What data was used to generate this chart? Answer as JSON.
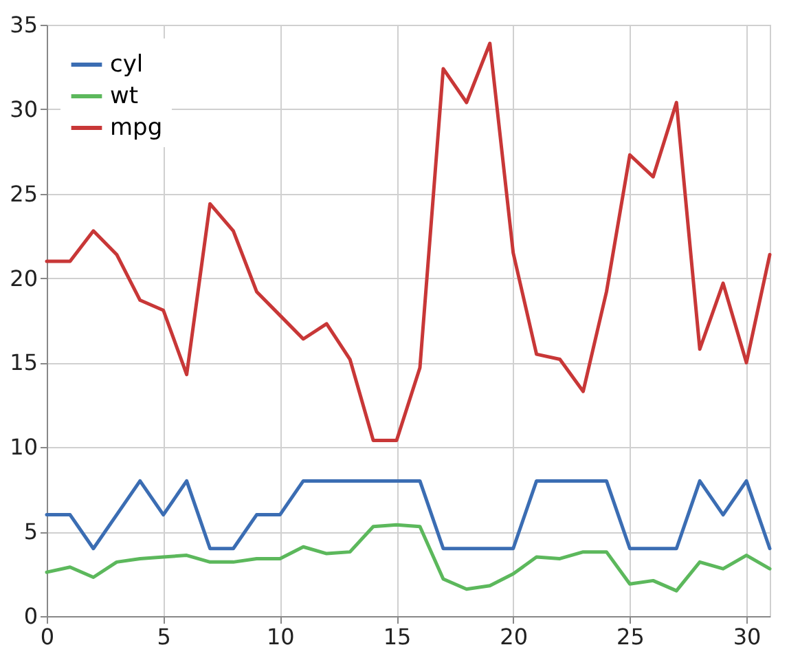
{
  "chart_data": {
    "type": "line",
    "x": [
      0,
      1,
      2,
      3,
      4,
      5,
      6,
      7,
      8,
      9,
      10,
      11,
      12,
      13,
      14,
      15,
      16,
      17,
      18,
      19,
      20,
      21,
      22,
      23,
      24,
      25,
      26,
      27,
      28,
      29,
      30,
      31
    ],
    "series": [
      {
        "name": "cyl",
        "color": "#3b6db3",
        "values": [
          6,
          6,
          4,
          6,
          8,
          6,
          8,
          4,
          4,
          6,
          6,
          8,
          8,
          8,
          8,
          8,
          8,
          4,
          4,
          4,
          4,
          8,
          8,
          8,
          8,
          4,
          4,
          4,
          8,
          6,
          8,
          4
        ]
      },
      {
        "name": "wt",
        "color": "#5cb85c",
        "values": [
          2.6,
          2.9,
          2.3,
          3.2,
          3.4,
          3.5,
          3.6,
          3.2,
          3.2,
          3.4,
          3.4,
          4.1,
          3.7,
          3.8,
          5.3,
          5.4,
          5.3,
          2.2,
          1.6,
          1.8,
          2.5,
          3.5,
          3.4,
          3.8,
          3.8,
          1.9,
          2.1,
          1.5,
          3.2,
          2.8,
          3.6,
          2.8
        ]
      },
      {
        "name": "mpg",
        "color": "#c83737",
        "values": [
          21,
          21,
          22.8,
          21.4,
          18.7,
          18.1,
          14.3,
          24.4,
          22.8,
          19.2,
          17.8,
          16.4,
          17.3,
          15.2,
          10.4,
          10.4,
          14.7,
          32.4,
          30.4,
          33.9,
          21.5,
          15.5,
          15.2,
          13.3,
          19.2,
          27.3,
          26,
          30.4,
          15.8,
          19.7,
          15,
          21.4
        ]
      }
    ],
    "xlim": [
      0,
      31
    ],
    "xticks": [
      0,
      5,
      10,
      15,
      20,
      25,
      30
    ],
    "ylim": [
      0,
      35
    ],
    "yticks": [
      0,
      5,
      10,
      15,
      20,
      25,
      30,
      35
    ],
    "grid": true,
    "legend": "top left",
    "marker": "none",
    "line_style": "solid"
  }
}
